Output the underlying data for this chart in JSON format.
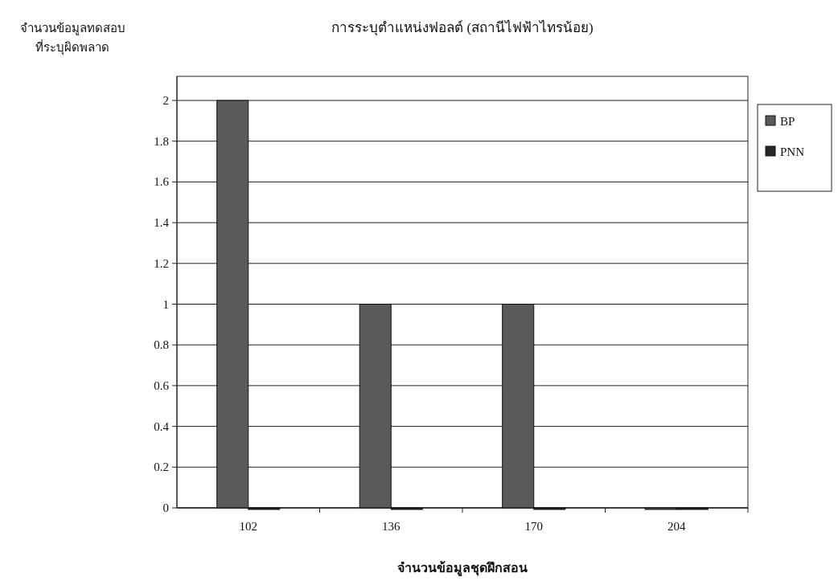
{
  "chart_data": {
    "type": "bar",
    "title": "การระบุตำแหน่งฟอลต์ (สถานีไฟฟ้าไทรน้อย)",
    "xlabel": "จำนวนข้อมูลชุดฝึกสอน",
    "ylabel": "จำนวนข้อมูลทดสอบ\nที่ระบุผิดพลาด",
    "categories": [
      "102",
      "136",
      "170",
      "204"
    ],
    "series": [
      {
        "name": "BP",
        "color": "#5a5a5a",
        "values": [
          2,
          1,
          1,
          0
        ]
      },
      {
        "name": "PNN",
        "color": "#262626",
        "values": [
          0,
          0,
          0,
          0
        ]
      }
    ],
    "ylim": [
      0,
      2
    ],
    "yticks": [
      0,
      0.2,
      0.4,
      0.6,
      0.8,
      1,
      1.2,
      1.4,
      1.6,
      1.8,
      2
    ],
    "grid": "y",
    "legend": "right"
  }
}
